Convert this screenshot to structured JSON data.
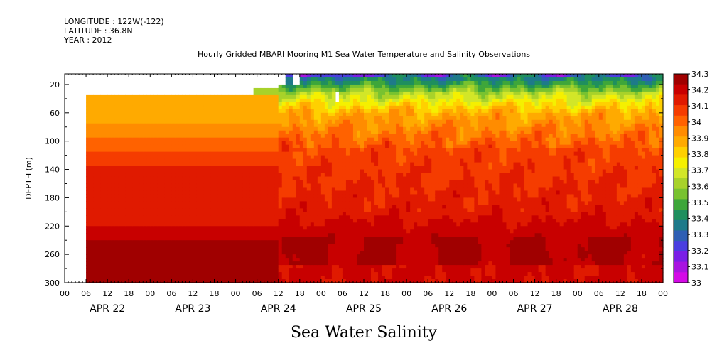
{
  "header": {
    "longitude": "LONGITUDE : 122W(-122)",
    "latitude": "LATITUDE : 36.8N",
    "year": "YEAR : 2012"
  },
  "chart_data": {
    "type": "heatmap",
    "title": "Hourly Gridded MBARI Mooring M1 Sea Water Temperature and Salinity Observations",
    "ylabel": "DEPTH (m)",
    "xlabel": "Sea Water Salinity",
    "x_hour_ticks": [
      "00",
      "06",
      "12",
      "18",
      "00",
      "06",
      "12",
      "18",
      "00",
      "06",
      "12",
      "18",
      "00",
      "06",
      "12",
      "18",
      "00",
      "06",
      "12",
      "18",
      "00",
      "06",
      "12",
      "18",
      "00",
      "06",
      "12",
      "18",
      "00"
    ],
    "x_days": [
      "APR 22",
      "APR 23",
      "APR 24",
      "APR 25",
      "APR 26",
      "APR 27",
      "APR 28"
    ],
    "xlim_hours": [
      0,
      168
    ],
    "y_ticks": [
      20,
      60,
      100,
      140,
      180,
      220,
      260,
      300
    ],
    "ylim": [
      5,
      300
    ],
    "y_inverted": true,
    "colorbar": {
      "levels": [
        "34.3",
        "34.2",
        "34.1",
        "34",
        "33.9",
        "33.8",
        "33.7",
        "33.6",
        "33.5",
        "33.4",
        "33.3",
        "33.2",
        "33.1",
        "33"
      ],
      "colors": [
        "#a00000",
        "#c80000",
        "#e01a00",
        "#f53c00",
        "#ff6200",
        "#ff8c00",
        "#ffaa00",
        "#ffd000",
        "#f5f000",
        "#d2e628",
        "#a8d22a",
        "#78c230",
        "#3ea63a",
        "#1f8f5e",
        "#1e7a8a",
        "#2f5fb4",
        "#4a3ee0",
        "#7a1ee6",
        "#a814e0",
        "#d40ae6"
      ],
      "min": 33.0,
      "max": 34.3
    },
    "grid": false,
    "legend": "colorbar-right"
  }
}
